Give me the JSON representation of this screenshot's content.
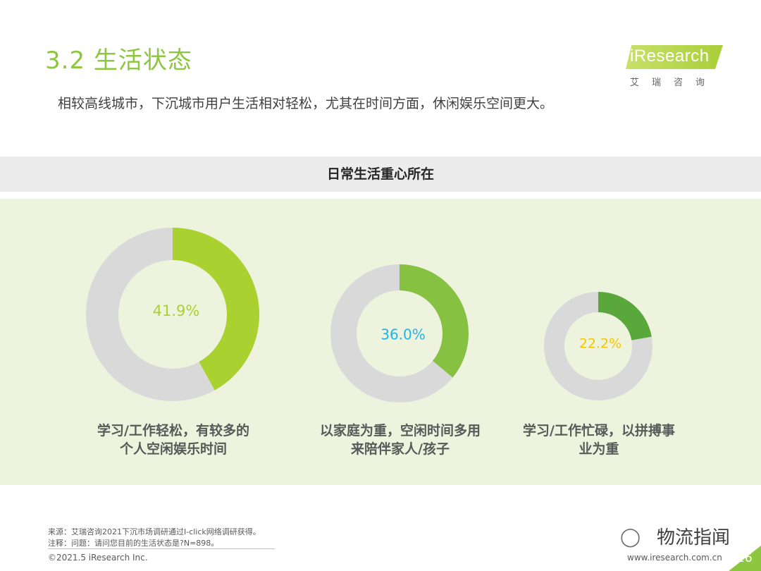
{
  "header": {
    "title": "3.2 生活状态",
    "subtitle": "相较高线城市，下沉城市用户生活相对轻松，尤其在时间方面，休闲娱乐空间更大。"
  },
  "logo": {
    "brand": "iResearch",
    "cn": "艾瑞咨询"
  },
  "chart_data": {
    "type": "pie",
    "title": "日常生活重心所在",
    "categories": [
      "学习/工作轻松，有较多的个人空闲娱乐时间",
      "以家庭为重，空闲时间多用来陪伴家人/孩子",
      "学习/工作忙碌，以拼搏事业为重"
    ],
    "values": [
      41.9,
      36.0,
      22.2
    ],
    "value_labels": [
      "41.9%",
      "36.0%",
      "22.2%"
    ],
    "caption_lines": [
      [
        "学习/工作轻松，有较多的",
        "个人空闲娱乐时间"
      ],
      [
        "以家庭为重，空闲时间多用",
        "来陪伴家人/孩子"
      ],
      [
        "学习/工作忙碌，以拼搏事",
        "业为重"
      ]
    ],
    "colors": [
      "#a9d12f",
      "#86c142",
      "#5aa83c"
    ],
    "label_colors": [
      "#a9d12f",
      "#1fb5e8",
      "#f5c400"
    ],
    "remainder_color": "#d9d9d9"
  },
  "footer": {
    "source": "来源：艾瑞咨询2021下沉市场调研通过I-click网络调研获得。",
    "note": "注释：问题：请问您目前的生活状态是?N=898。",
    "copyright": "©2021.5 iResearch Inc.",
    "website": "www.iresearch.com.cn",
    "watermark": "物流指闻",
    "page": "16"
  }
}
